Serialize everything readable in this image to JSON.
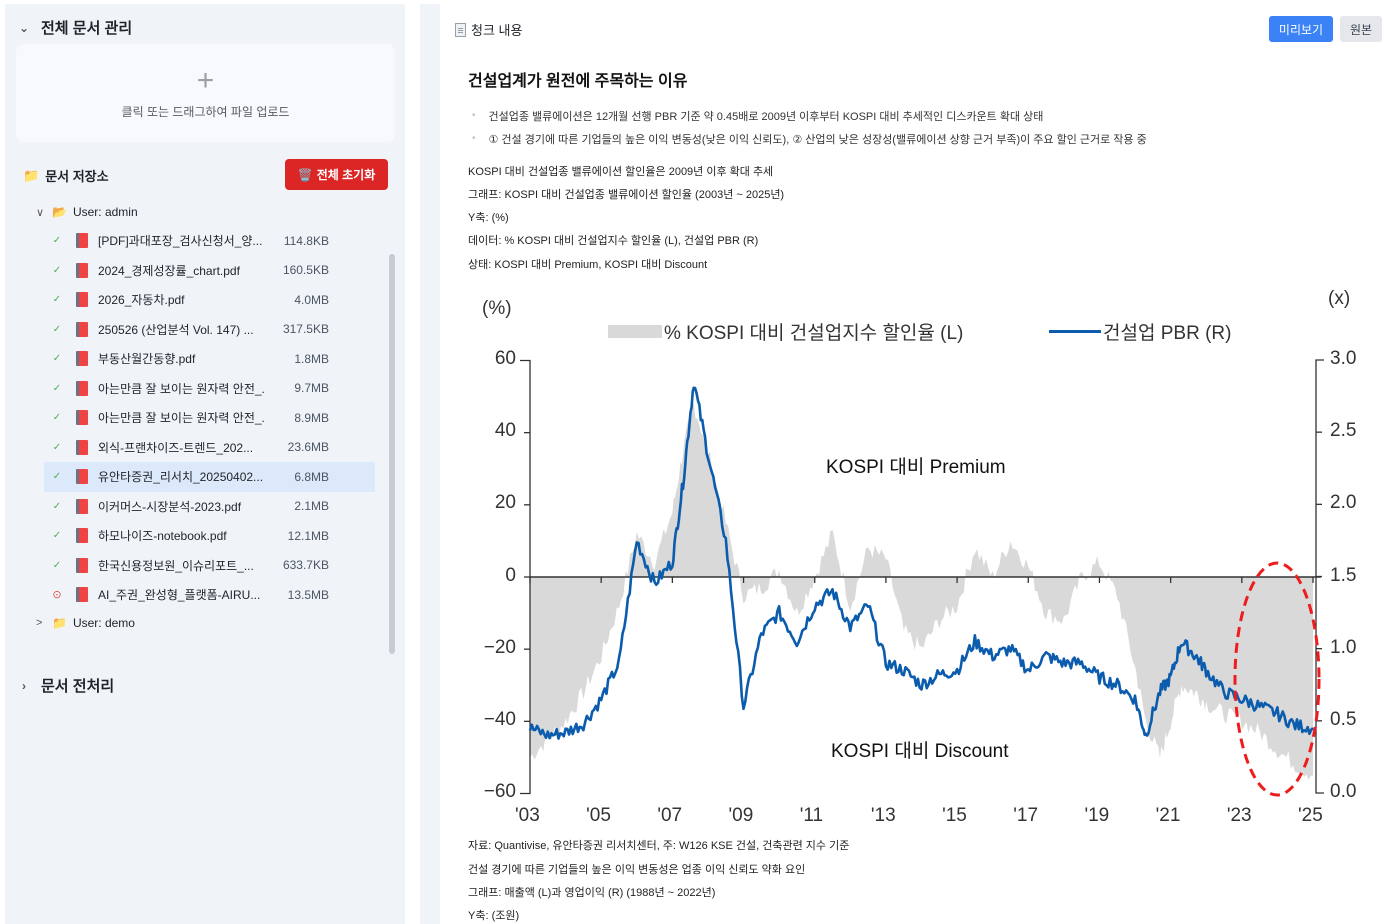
{
  "sidebar": {
    "sections": {
      "manage": {
        "label": "전체 문서 관리",
        "chevron": "chevron-down-icon"
      },
      "preprocess": {
        "label": "문서 전처리",
        "chevron": "chevron-right-icon"
      }
    },
    "upload": {
      "plus": "+",
      "hint": "클릭 또는 드래그하여 파일 업로드"
    },
    "repository": {
      "icon": "📁",
      "label": "문서 저장소",
      "reset_icon": "🗑️",
      "reset_label": "전체 초기화"
    },
    "users": [
      {
        "caret": "∨",
        "icon": "📂",
        "label": "User: admin",
        "expanded": true
      },
      {
        "caret": ">",
        "icon": "📁",
        "label": "User: demo",
        "expanded": false
      }
    ],
    "files": [
      {
        "status": "✓",
        "state": "ok",
        "name": "[PDF]과대포장_검사신청서_양...",
        "size": "114.8KB",
        "selected": false
      },
      {
        "status": "✓",
        "state": "ok",
        "name": "2024_경제성장률_chart.pdf",
        "size": "160.5KB",
        "selected": false
      },
      {
        "status": "✓",
        "state": "ok",
        "name": "2026_자동차.pdf",
        "size": "4.0MB",
        "selected": false
      },
      {
        "status": "✓",
        "state": "ok",
        "name": "250526 (산업분석 Vol. 147) ...",
        "size": "317.5KB",
        "selected": false
      },
      {
        "status": "✓",
        "state": "ok",
        "name": "부동산월간동향.pdf",
        "size": "1.8MB",
        "selected": false
      },
      {
        "status": "✓",
        "state": "ok",
        "name": "아는만큼 잘 보이는 원자력 안전_...",
        "size": "9.7MB",
        "selected": false
      },
      {
        "status": "✓",
        "state": "ok",
        "name": "아는만큼 잘 보이는 원자력 안전_...",
        "size": "8.9MB",
        "selected": false
      },
      {
        "status": "✓",
        "state": "ok",
        "name": "외식-프랜차이즈-트렌드_202...",
        "size": "23.6MB",
        "selected": false
      },
      {
        "status": "✓",
        "state": "ok",
        "name": "유안타증권_리서치_20250402....",
        "size": "6.8MB",
        "selected": true
      },
      {
        "status": "✓",
        "state": "ok",
        "name": "이커머스-시장분석-2023.pdf",
        "size": "2.1MB",
        "selected": false
      },
      {
        "status": "✓",
        "state": "ok",
        "name": "하모나이즈-notebook.pdf",
        "size": "12.1MB",
        "selected": false
      },
      {
        "status": "✓",
        "state": "ok",
        "name": "한국신용정보원_이슈리포트_...",
        "size": "633.7KB",
        "selected": false
      },
      {
        "status": "⊙",
        "state": "error",
        "name": "AI_주권_완성형_플랫폼-AIRU...",
        "size": "13.5MB",
        "selected": false
      }
    ]
  },
  "main": {
    "title": "청크 내용",
    "buttons": {
      "preview": "미리보기",
      "raw": "원본"
    },
    "heading": "건설업계가 원전에 주목하는 이유",
    "bullets": [
      "건설업종 밸류에이션은 12개월 선행 PBR 기준 약 0.45배로 2009년 이후부터 KOSPI 대비 추세적인 디스카운트 확대 상태",
      "① 건설 경기에 따른 기업들의 높은 이익 변동성(낮은 이익 신뢰도), ② 산업의 낮은 성장성(밸류에이션 상향 근거 부족)이 주요 할인 근거로 작용 중"
    ],
    "paragraphs_top": [
      "KOSPI 대비 건설업종 밸류에이션 할인율은 2009년 이후 확대 추세",
      "그래프: KOSPI 대비 건설업종 밸류에이션 할인율 (2003년 ~ 2025년)",
      "Y축: (%)",
      "데이터: % KOSPI 대비 건설업지수 할인율 (L), 건설업 PBR (R)",
      "상태: KOSPI 대비 Premium, KOSPI 대비 Discount"
    ],
    "paragraphs_bottom": [
      "자료: Quantivise, 유안타증권 리서치센터, 주: W126 KSE 건설, 건축관련 지수 기준",
      "건설 경기에 따른 기업들의 높은 이익 변동성은 업종 이익 신뢰도 약화 요인",
      "그래프: 매출액 (L)과 영업이익 (R) (1988년 ~ 2022년)",
      "Y축: (조원)"
    ]
  },
  "colors": {
    "accent_blue": "#3b82f6",
    "reset_red": "#dc2626",
    "pbr_line": "#0b5cad",
    "discount_fill": "#d9d9d9",
    "highlight_ellipse": "#ee1c1c",
    "selected_row": "#dce9fb"
  },
  "chart_data": {
    "type": "area+line",
    "title": "",
    "left_unit": "(%)",
    "right_unit": "(x)",
    "ylabel_left": "% KOSPI 대비 건설업지수 할인율 (L)",
    "ylabel_right": "건설업 PBR (R)",
    "ylim_left": [
      -60,
      60
    ],
    "ylim_right": [
      0.0,
      3.0
    ],
    "yticks_left": [
      "60",
      "40",
      "20",
      "0",
      "−20",
      "−40",
      "−60"
    ],
    "yticks_right": [
      "3.0",
      "2.5",
      "2.0",
      "1.5",
      "1.0",
      "0.5",
      "0.0"
    ],
    "xticks": [
      "'03",
      "'05",
      "'07",
      "'09",
      "'11",
      "'13",
      "'15",
      "'17",
      "'19",
      "'21",
      "'23",
      "'25"
    ],
    "legend": [
      "% KOSPI 대비 건설업지수 할인율 (L)",
      "건설업 PBR (R)"
    ],
    "legend_position": "top",
    "grid": false,
    "annotations": [
      "KOSPI 대비 Premium",
      "KOSPI 대비 Discount"
    ],
    "highlight": "red dashed ellipse around 2023-2025",
    "x": [
      2003.0,
      2003.5,
      2004.0,
      2004.5,
      2005.0,
      2005.5,
      2006.0,
      2006.5,
      2007.0,
      2007.3,
      2007.6,
      2008.0,
      2008.5,
      2009.0,
      2009.5,
      2010.0,
      2010.5,
      2011.0,
      2011.5,
      2012.0,
      2012.5,
      2013.0,
      2013.5,
      2014.0,
      2014.5,
      2015.0,
      2015.5,
      2016.0,
      2016.5,
      2017.0,
      2017.5,
      2018.0,
      2018.5,
      2019.0,
      2019.5,
      2020.0,
      2020.3,
      2020.7,
      2021.0,
      2021.3,
      2021.7,
      2022.0,
      2022.5,
      2023.0,
      2023.5,
      2024.0,
      2024.5,
      2025.0
    ],
    "series": [
      {
        "name": "% KOSPI 대비 건설업지수 할인율 (L)",
        "axis": "left",
        "values": [
          -50,
          -45,
          -40,
          -32,
          -22,
          -8,
          12,
          4,
          18,
          35,
          48,
          35,
          15,
          -5,
          -3,
          2,
          -10,
          0,
          12,
          -8,
          8,
          5,
          -15,
          -20,
          -12,
          -8,
          8,
          0,
          10,
          3,
          -10,
          -12,
          0,
          4,
          -5,
          -25,
          -40,
          -50,
          -40,
          -30,
          -32,
          -35,
          -38,
          -40,
          -43,
          -48,
          -52,
          -55
        ]
      },
      {
        "name": "건설업 PBR (R)",
        "axis": "right",
        "values": [
          0.45,
          0.4,
          0.42,
          0.48,
          0.65,
          0.9,
          1.75,
          1.45,
          1.6,
          2.15,
          2.85,
          2.35,
          1.75,
          0.6,
          1.1,
          1.25,
          1.05,
          1.3,
          1.4,
          1.15,
          1.3,
          0.9,
          0.85,
          0.75,
          0.82,
          0.85,
          1.05,
          0.95,
          1.0,
          0.85,
          0.95,
          0.9,
          0.9,
          0.8,
          0.75,
          0.65,
          0.4,
          0.7,
          0.8,
          1.05,
          0.95,
          0.85,
          0.7,
          0.65,
          0.6,
          0.55,
          0.47,
          0.45
        ]
      }
    ]
  },
  "chart_labels": {
    "left_unit": "(%)",
    "right_unit": "(x)",
    "legend_area": "% KOSPI 대비 건설업지수 할인율 (L)",
    "legend_line": "건설업 PBR (R)",
    "premium": "KOSPI 대비 Premium",
    "discount": "KOSPI 대비 Discount",
    "yl": [
      "60",
      "40",
      "20",
      "0",
      "−20",
      "−40",
      "−60"
    ],
    "yr": [
      "3.0",
      "2.5",
      "2.0",
      "1.5",
      "1.0",
      "0.5",
      "0.0"
    ],
    "xt": [
      "'03",
      "'05",
      "'07",
      "'09",
      "'11",
      "'13",
      "'15",
      "'17",
      "'19",
      "'21",
      "'23",
      "'25"
    ]
  }
}
